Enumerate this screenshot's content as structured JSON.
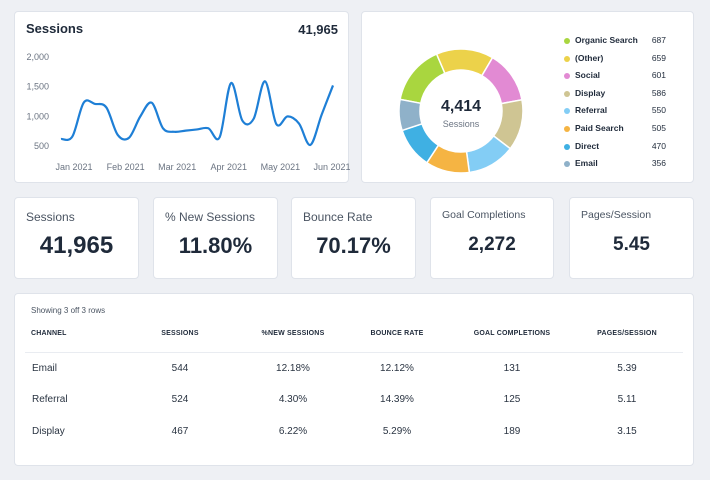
{
  "line_card": {
    "title": "Sessions",
    "total": "41,965"
  },
  "chart_data": [
    {
      "type": "line",
      "title": "Sessions",
      "y_ticks": [
        "2,000",
        "1,500",
        "1,000",
        "500"
      ],
      "ylim": [
        300,
        2150
      ],
      "x_ticks": [
        "Jan 2021",
        "Feb 2021",
        "Mar 2021",
        "Apr 2021",
        "May 2021",
        "Jun 2021"
      ],
      "grid": false,
      "series": [
        {
          "color": "#1e7fd6",
          "values": [
            620,
            660,
            1230,
            1210,
            1150,
            690,
            640,
            1000,
            1230,
            800,
            740,
            760,
            780,
            800,
            650,
            1560,
            930,
            960,
            1590,
            870,
            1000,
            880,
            520,
            1030,
            1520
          ]
        }
      ]
    },
    {
      "type": "pie",
      "center_value": "4,414",
      "center_label": "Sessions",
      "slices": [
        {
          "label": "Organic Search",
          "value": 687,
          "display": "687",
          "color": "#a9d63f"
        },
        {
          "label": "(Other)",
          "value": 659,
          "display": "659",
          "color": "#ecd24a"
        },
        {
          "label": "Social",
          "value": 601,
          "display": "601",
          "color": "#e28ad3"
        },
        {
          "label": "Display",
          "value": 586,
          "display": "586",
          "color": "#cfc593"
        },
        {
          "label": "Referral",
          "value": 550,
          "display": "550",
          "color": "#83cdf5"
        },
        {
          "label": "Paid Search",
          "value": 505,
          "display": "505",
          "color": "#f5b443"
        },
        {
          "label": "Direct",
          "value": 470,
          "display": "470",
          "color": "#3fb0e3"
        },
        {
          "label": "Email",
          "value": 356,
          "display": "356",
          "color": "#8fb1c9"
        }
      ]
    }
  ],
  "kpis": [
    {
      "label": "Sessions",
      "value": "41,965"
    },
    {
      "label": "% New Sessions",
      "value": "11.80%"
    },
    {
      "label": "Bounce Rate",
      "value": "70.17%"
    },
    {
      "label": "Goal Completions",
      "value": "2,272"
    },
    {
      "label": "Pages/Session",
      "value": "5.45"
    }
  ],
  "table": {
    "caption": "Showing 3 off 3 rows",
    "headers": [
      "CHANNEL",
      "SESSIONS",
      "%NEW SESSIONS",
      "BOUNCE RATE",
      "GOAL COMPLETIONS",
      "PAGES/SESSION"
    ],
    "rows": [
      [
        "Email",
        "544",
        "12.18%",
        "12.12%",
        "131",
        "5.39"
      ],
      [
        "Referral",
        "524",
        "4.30%",
        "14.39%",
        "125",
        "5.11"
      ],
      [
        "Display",
        "467",
        "6.22%",
        "5.29%",
        "189",
        "3.15"
      ]
    ]
  }
}
